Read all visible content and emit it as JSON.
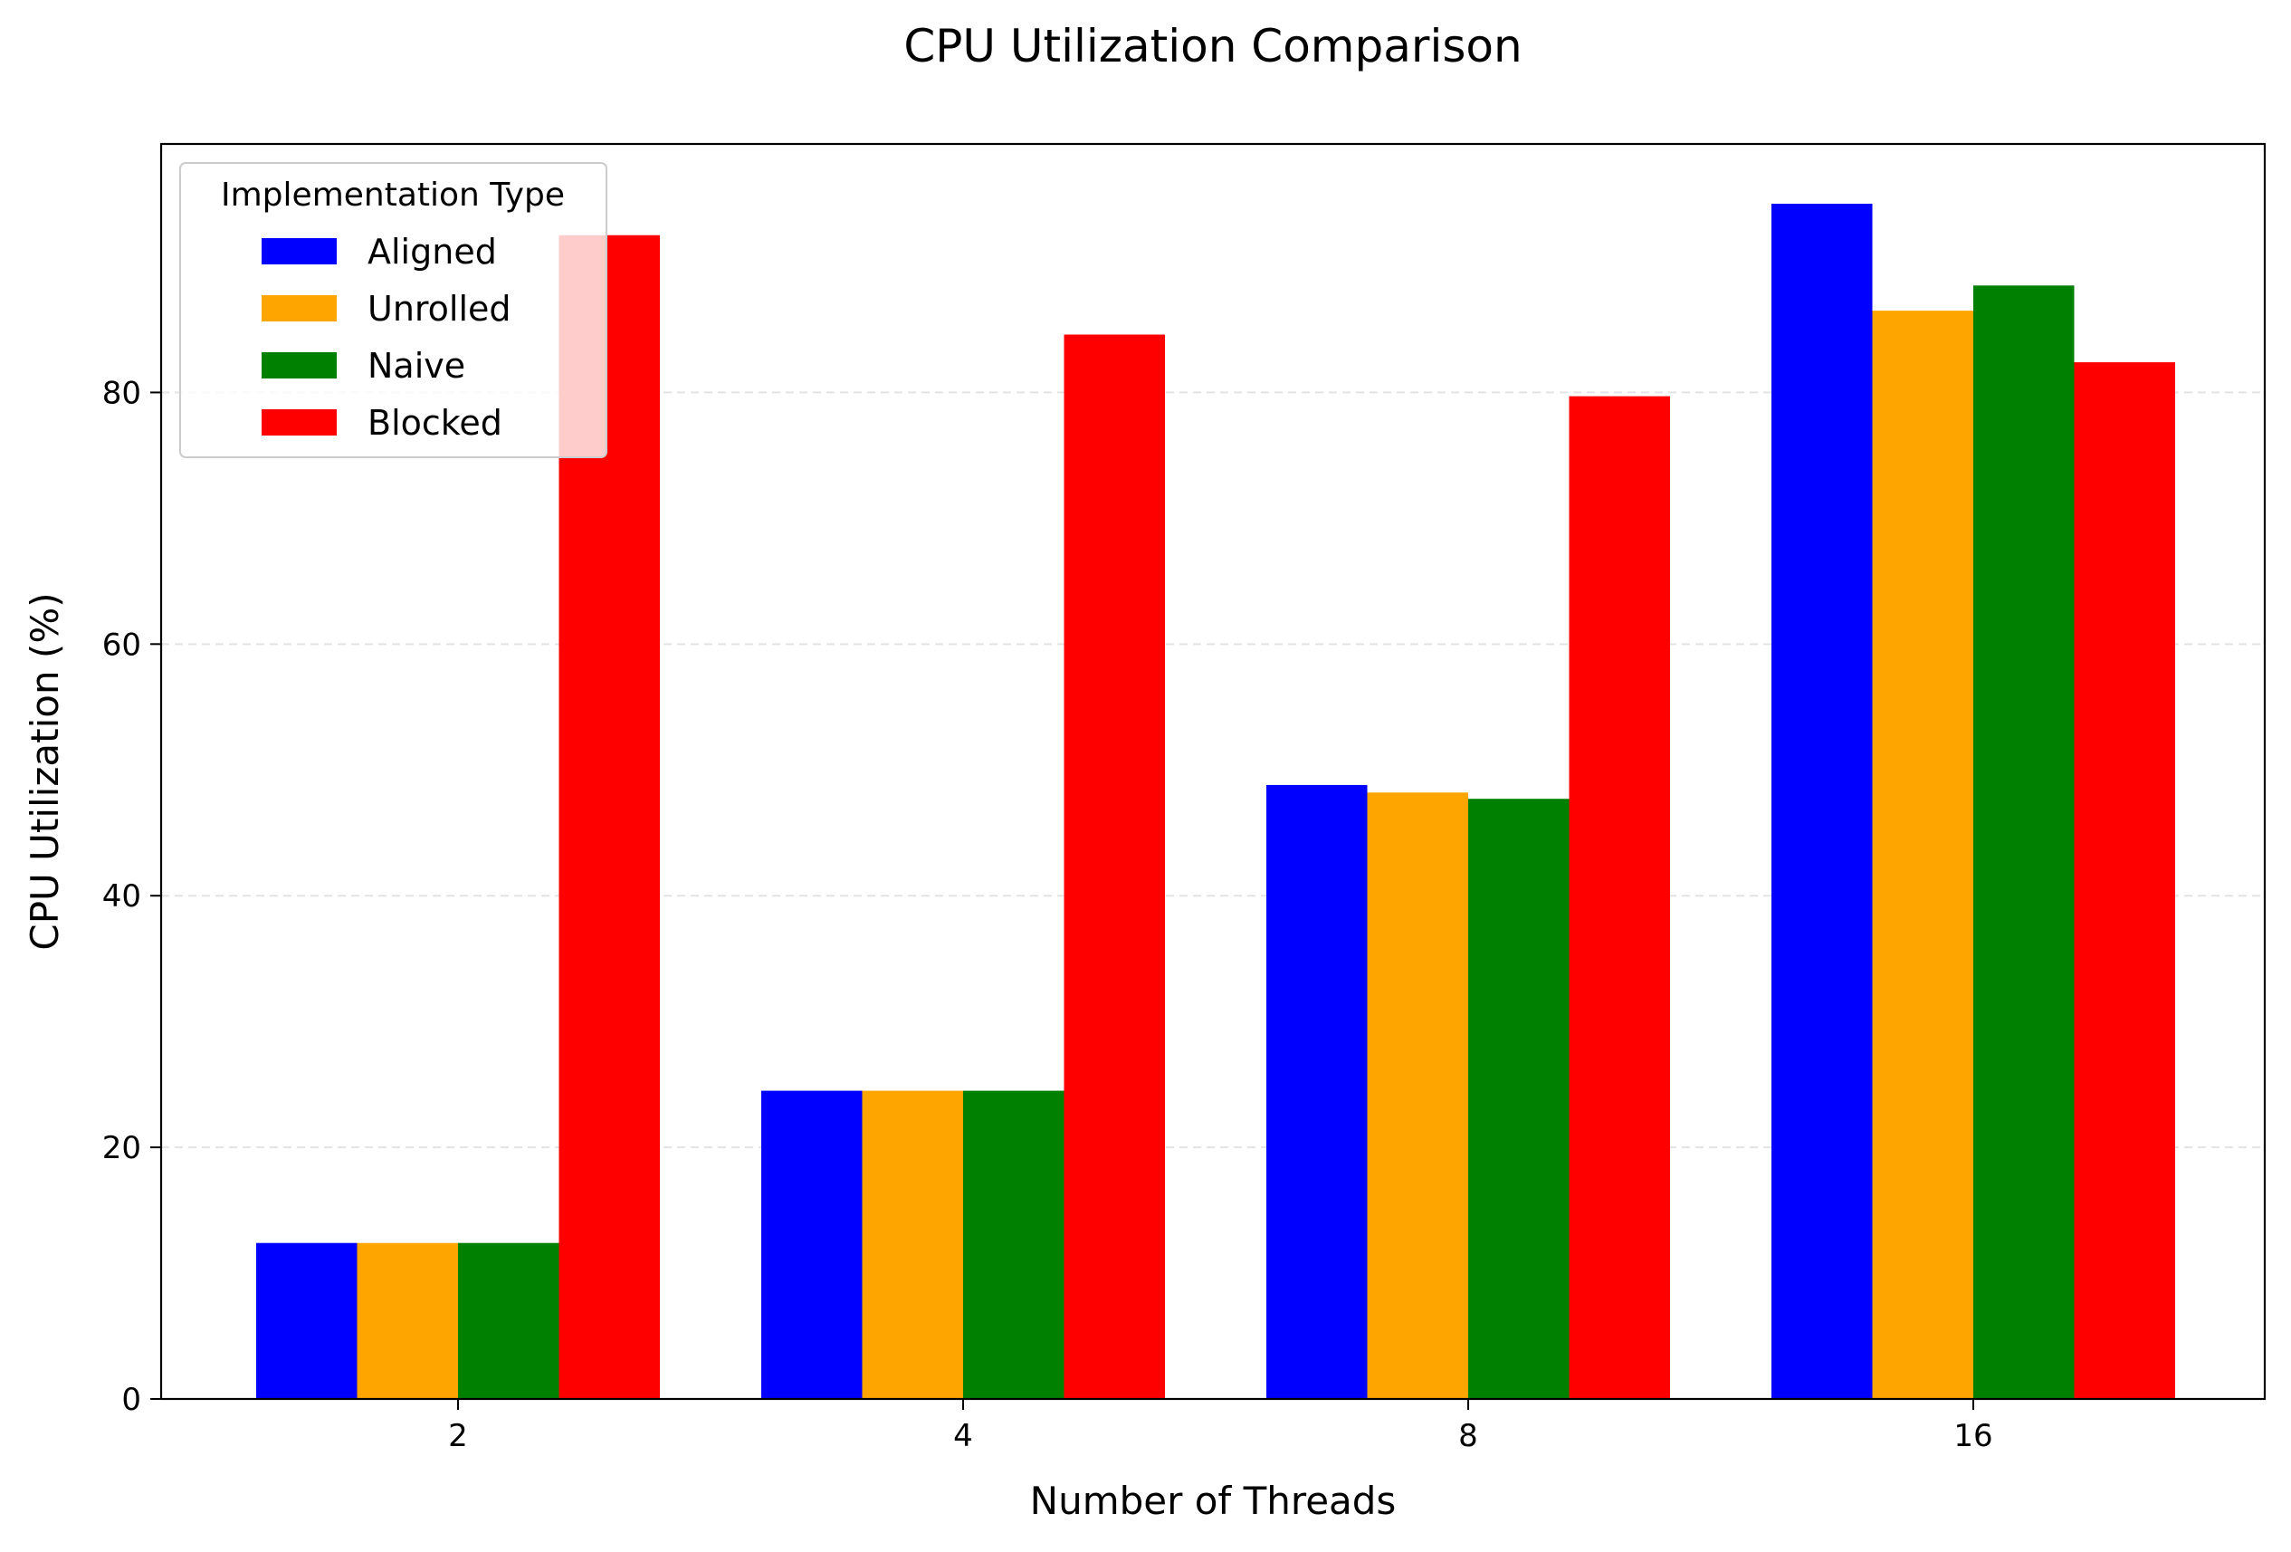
{
  "chart_data": {
    "type": "bar",
    "title": "CPU Utilization Comparison",
    "xlabel": "Number of Threads",
    "ylabel": "CPU Utilization (%)",
    "categories": [
      "2",
      "4",
      "8",
      "16"
    ],
    "series": [
      {
        "name": "Aligned",
        "color": "#0000ff",
        "values": [
          12.4,
          24.5,
          48.8,
          95.0
        ]
      },
      {
        "name": "Unrolled",
        "color": "#ffa500",
        "values": [
          12.4,
          24.5,
          48.2,
          86.5
        ]
      },
      {
        "name": "Naive",
        "color": "#008000",
        "values": [
          12.4,
          24.5,
          47.7,
          88.5
        ]
      },
      {
        "name": "Blocked",
        "color": "#ff0000",
        "values": [
          92.5,
          84.6,
          79.7,
          82.4
        ]
      }
    ],
    "ylim": [
      0,
      99.75
    ],
    "yticks": [
      0,
      20,
      40,
      60,
      80
    ],
    "grid": "y-dashed",
    "legend": {
      "title": "Implementation Type",
      "placement": "top-left"
    }
  }
}
